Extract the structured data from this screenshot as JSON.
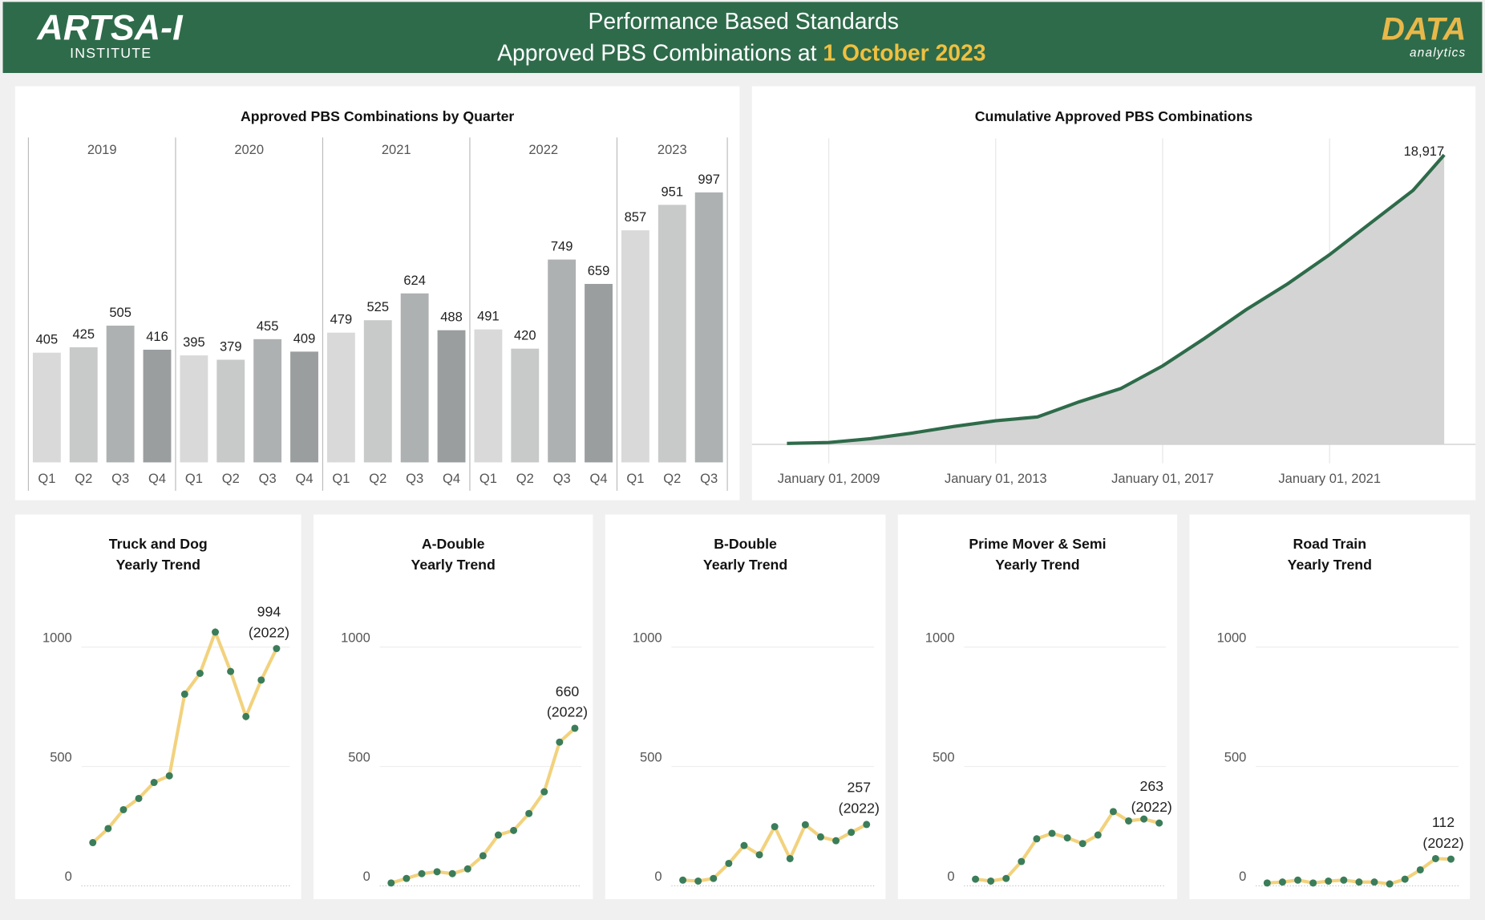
{
  "header": {
    "logo": "ARTSA-I",
    "logo_subtitle": "INSTITUTE",
    "title": "Performance Based Standards",
    "subtitle": "Approved PBS Combinations at ",
    "date": "1 October 2023",
    "brand": "DATA",
    "brand_subtitle": "analytics"
  },
  "chart_data": [
    {
      "type": "bar",
      "title": "Approved PBS Combinations by Quarter",
      "ylim": [
        0,
        1200
      ],
      "quarter_colors": [
        "#d9d9d9",
        "#c8c9c9",
        "#aeb1b2",
        "#9a9e9f"
      ],
      "groups": [
        {
          "name": "2019",
          "categories": [
            "Q1",
            "Q2",
            "Q3",
            "Q4"
          ],
          "values": [
            405,
            425,
            505,
            416
          ]
        },
        {
          "name": "2020",
          "categories": [
            "Q1",
            "Q2",
            "Q3",
            "Q4"
          ],
          "values": [
            395,
            379,
            455,
            409
          ]
        },
        {
          "name": "2021",
          "categories": [
            "Q1",
            "Q2",
            "Q3",
            "Q4"
          ],
          "values": [
            479,
            525,
            624,
            488
          ]
        },
        {
          "name": "2022",
          "categories": [
            "Q1",
            "Q2",
            "Q3",
            "Q4"
          ],
          "values": [
            491,
            420,
            749,
            659
          ]
        },
        {
          "name": "2023",
          "categories": [
            "Q1",
            "Q2",
            "Q3"
          ],
          "values": [
            857,
            951,
            997
          ]
        }
      ]
    },
    {
      "type": "area",
      "title": "Cumulative Approved PBS Combinations",
      "color": "#2e6b4a",
      "fill": "#d4d4d4",
      "xlim": [
        "2007-03-01",
        "2024-07-01"
      ],
      "ylim": [
        0,
        20000
      ],
      "xticks": [
        {
          "value": "2009-01-01",
          "label": "January 01, 2009"
        },
        {
          "value": "2013-01-01",
          "label": "January 01, 2013"
        },
        {
          "value": "2017-01-01",
          "label": "January 01, 2017"
        },
        {
          "value": "2021-01-01",
          "label": "January 01, 2021"
        }
      ],
      "x": [
        "2008-01-01",
        "2009-01-01",
        "2010-01-01",
        "2011-01-01",
        "2012-01-01",
        "2013-01-01",
        "2014-01-01",
        "2015-01-01",
        "2016-01-01",
        "2017-01-01",
        "2018-01-01",
        "2019-01-01",
        "2020-01-01",
        "2021-01-01",
        "2022-01-01",
        "2023-01-01",
        "2023-10-01"
      ],
      "values": [
        60,
        120,
        370,
        740,
        1170,
        1545,
        1790,
        2780,
        3650,
        5130,
        6920,
        8800,
        10500,
        12400,
        14500,
        16600,
        18917
      ],
      "value_labels": [
        null,
        null,
        null,
        null,
        null,
        null,
        null,
        null,
        null,
        null,
        null,
        null,
        null,
        null,
        null,
        null,
        "18,917"
      ]
    },
    {
      "type": "line",
      "title": [
        "Truck and Dog",
        "Yearly Trend"
      ],
      "note": "(2022)",
      "ylim": [
        0,
        1250
      ],
      "yticks": [
        0,
        500,
        1000
      ],
      "color": "#f2d27e",
      "marker_color": "#3b7d5a",
      "values": [
        181,
        240,
        319,
        366,
        433,
        461,
        803,
        890,
        1063,
        898,
        709,
        862,
        994
      ]
    },
    {
      "type": "line",
      "title": [
        "A-Double",
        "Yearly Trend"
      ],
      "note": "(2022)",
      "ylim": [
        0,
        1250
      ],
      "yticks": [
        0,
        500,
        1000
      ],
      "color": "#f2d27e",
      "marker_color": "#3b7d5a",
      "values": [
        12,
        31,
        51,
        59,
        51,
        71,
        126,
        213,
        232,
        303,
        394,
        602,
        660
      ]
    },
    {
      "type": "line",
      "title": [
        "B-Double",
        "Yearly Trend"
      ],
      "note": "(2022)",
      "ylim": [
        0,
        1250
      ],
      "yticks": [
        0,
        500,
        1000
      ],
      "color": "#f2d27e",
      "marker_color": "#3b7d5a",
      "values": [
        24,
        20,
        31,
        94,
        169,
        130,
        248,
        114,
        256,
        205,
        189,
        224,
        257
      ]
    },
    {
      "type": "line",
      "title": [
        "Prime Mover & Semi",
        "Yearly Trend"
      ],
      "note": "(2022)",
      "ylim": [
        0,
        1250
      ],
      "yticks": [
        0,
        500,
        1000
      ],
      "color": "#f2d27e",
      "marker_color": "#3b7d5a",
      "values": [
        28,
        20,
        31,
        102,
        197,
        220,
        201,
        177,
        213,
        311,
        272,
        280,
        263
      ]
    },
    {
      "type": "line",
      "title": [
        "Road Train",
        "Yearly Trend"
      ],
      "note": "(2022)",
      "ylim": [
        0,
        1250
      ],
      "yticks": [
        0,
        500,
        1000
      ],
      "color": "#f2d27e",
      "marker_color": "#3b7d5a",
      "values": [
        12,
        16,
        24,
        12,
        20,
        24,
        16,
        16,
        8,
        28,
        67,
        114,
        112
      ]
    }
  ]
}
